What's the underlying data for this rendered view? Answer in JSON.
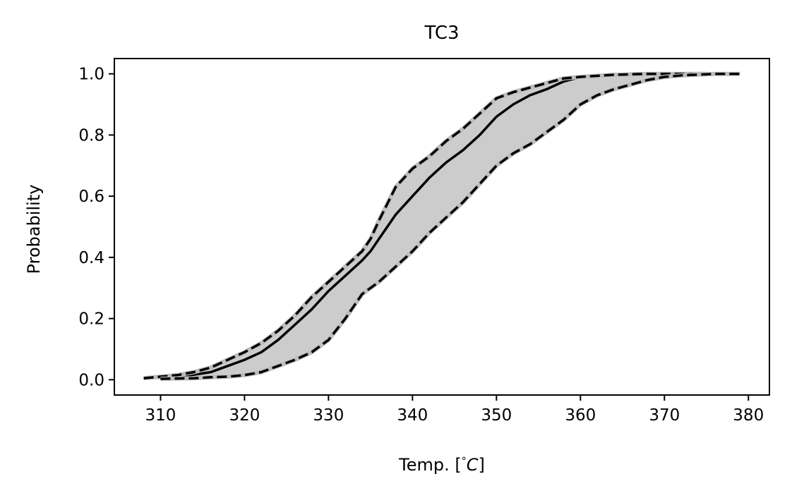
{
  "chart_data": {
    "type": "line",
    "title": "TC3",
    "xlabel_prefix": "Temp. [",
    "xlabel_degree": "°",
    "xlabel_unit": "C",
    "xlabel_suffix": "]",
    "ylabel": "Probability",
    "xlim": [
      304.5,
      382.5
    ],
    "ylim": [
      -0.05,
      1.05
    ],
    "xticks": [
      310,
      320,
      330,
      340,
      350,
      360,
      370,
      380
    ],
    "yticks": [
      0.0,
      0.2,
      0.4,
      0.6,
      0.8,
      1.0
    ],
    "ytick_labels": [
      "0.0",
      "0.2",
      "0.4",
      "0.6",
      "0.8",
      "1.0"
    ],
    "grid": false,
    "colors": {
      "band": "#cccccc",
      "line": "#000000",
      "edge": "#bdbdbd"
    },
    "series": [
      {
        "role": "center",
        "style": "solid",
        "x": [
          308,
          312,
          316,
          318,
          320,
          322,
          324,
          326,
          328,
          330,
          332,
          334,
          335,
          336,
          338,
          340,
          342,
          344,
          346,
          348,
          350,
          352,
          354,
          356,
          358,
          360,
          364,
          368,
          372,
          375
        ],
        "y": [
          0.005,
          0.008,
          0.025,
          0.045,
          0.065,
          0.09,
          0.13,
          0.18,
          0.23,
          0.29,
          0.34,
          0.39,
          0.42,
          0.46,
          0.54,
          0.6,
          0.66,
          0.71,
          0.75,
          0.8,
          0.86,
          0.9,
          0.93,
          0.95,
          0.975,
          0.99,
          0.997,
          1.0,
          1.0,
          1.0
        ]
      },
      {
        "role": "upper",
        "style": "dashed",
        "x": [
          308,
          310,
          312,
          314,
          316,
          318,
          320,
          322,
          324,
          326,
          328,
          330,
          332,
          334,
          335,
          336,
          338,
          340,
          342,
          344,
          346,
          348,
          350,
          352,
          354,
          356,
          358,
          360,
          364,
          368,
          372,
          375
        ],
        "y": [
          0.005,
          0.01,
          0.015,
          0.025,
          0.04,
          0.065,
          0.09,
          0.12,
          0.16,
          0.21,
          0.27,
          0.32,
          0.37,
          0.42,
          0.46,
          0.52,
          0.63,
          0.69,
          0.73,
          0.78,
          0.82,
          0.87,
          0.92,
          0.94,
          0.955,
          0.97,
          0.985,
          0.99,
          0.997,
          1.0,
          1.0,
          1.0
        ]
      },
      {
        "role": "lower",
        "style": "dashed",
        "x": [
          310,
          314,
          316,
          318,
          320,
          322,
          324,
          326,
          328,
          330,
          332,
          334,
          336,
          338,
          340,
          342,
          344,
          346,
          348,
          350,
          352,
          354,
          356,
          358,
          360,
          362,
          364,
          366,
          368,
          370,
          372,
          376,
          379
        ],
        "y": [
          0.003,
          0.005,
          0.008,
          0.01,
          0.015,
          0.025,
          0.045,
          0.065,
          0.09,
          0.13,
          0.2,
          0.28,
          0.32,
          0.37,
          0.42,
          0.48,
          0.53,
          0.58,
          0.64,
          0.7,
          0.74,
          0.77,
          0.81,
          0.85,
          0.9,
          0.93,
          0.95,
          0.965,
          0.98,
          0.99,
          0.995,
          1.0,
          1.0
        ]
      }
    ]
  }
}
